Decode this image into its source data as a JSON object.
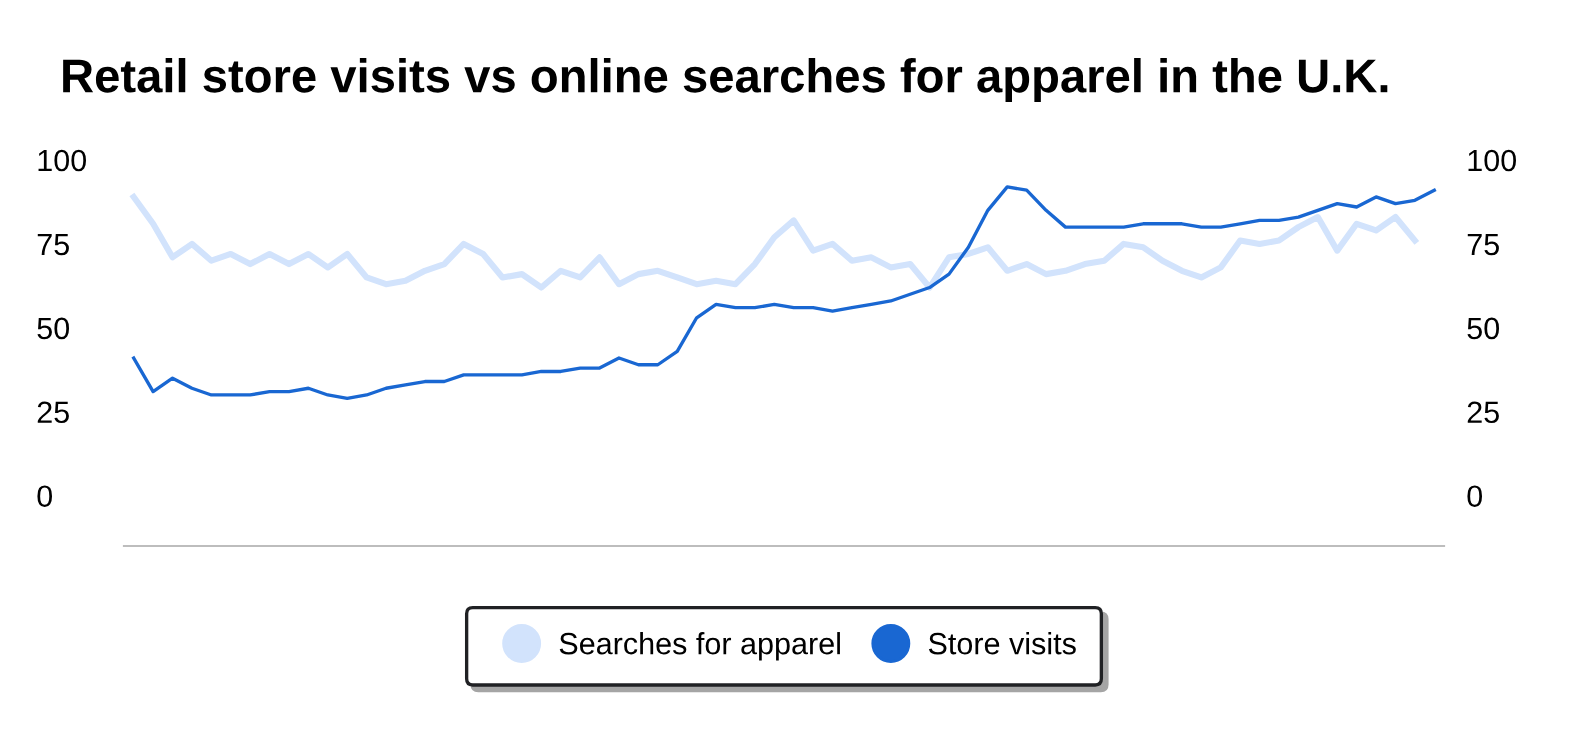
{
  "chart_data": {
    "type": "line",
    "title": "Retail store visits vs online searches for apparel in the U.K.",
    "categories": [
      null,
      null,
      null,
      null,
      null,
      null,
      null,
      null,
      null,
      null,
      null,
      null,
      null,
      null,
      null,
      null,
      null,
      null,
      null,
      null,
      null,
      null,
      null,
      null,
      null,
      null,
      null,
      null,
      null,
      null,
      null,
      null,
      null,
      null,
      null,
      null,
      null,
      null,
      null,
      null,
      null,
      null,
      null,
      null,
      null,
      null,
      null,
      null,
      null,
      null,
      null,
      null,
      null,
      null,
      null,
      null,
      null,
      null,
      null,
      null,
      null,
      null,
      null,
      null,
      null,
      null,
      null,
      null
    ],
    "series": [
      {
        "name": "Searches for apparel",
        "color": "#d2e3fc",
        "values": [
          89,
          81,
          71,
          75,
          70,
          72,
          69,
          72,
          69,
          72,
          68,
          72,
          65,
          63,
          64,
          67,
          69,
          75,
          72,
          65,
          66,
          62,
          67,
          65,
          71,
          63,
          66,
          67,
          65,
          63,
          64,
          63,
          69,
          77,
          82,
          73,
          75,
          70,
          71,
          68,
          69,
          62,
          71,
          72,
          74,
          67,
          69,
          66,
          67,
          69,
          70,
          75,
          74,
          70,
          67,
          65,
          68,
          76,
          75,
          76,
          80,
          83,
          73,
          81,
          79,
          83,
          76,
          null
        ]
      },
      {
        "name": "Store visits",
        "color": "#1967d2",
        "values": [
          41,
          31,
          35,
          32,
          30,
          30,
          30,
          31,
          31,
          32,
          30,
          29,
          30,
          32,
          33,
          34,
          34,
          36,
          36,
          36,
          36,
          37,
          37,
          38,
          38,
          41,
          39,
          39,
          43,
          53,
          57,
          56,
          56,
          57,
          56,
          56,
          55,
          56,
          57,
          58,
          60,
          62,
          66,
          74,
          85,
          92,
          91,
          85,
          80,
          80,
          80,
          80,
          81,
          81,
          81,
          80,
          80,
          81,
          82,
          82,
          83,
          85,
          87,
          86,
          89,
          87,
          88,
          91
        ]
      }
    ],
    "ylim": [
      -15,
      100
    ],
    "yticks": [
      0,
      25,
      50,
      75,
      100
    ],
    "y2lim": [
      -15,
      100
    ],
    "y2ticks": [
      0,
      25,
      50,
      75,
      100
    ],
    "legend": "bottom",
    "grid": false,
    "marker": "none",
    "line_style": "solid"
  }
}
